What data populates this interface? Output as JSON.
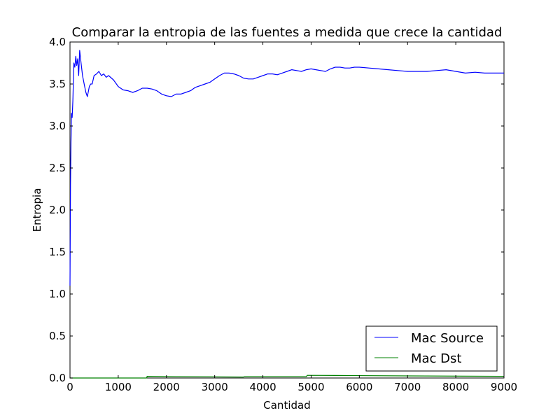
{
  "chart_data": {
    "type": "line",
    "title": "Comparar la entropia de las fuentes a medida que crece la cantidad",
    "xlabel": "Cantidad",
    "ylabel": "Entropia",
    "xlim": [
      0,
      9000
    ],
    "ylim": [
      0.0,
      4.0
    ],
    "xticks": [
      0,
      1000,
      2000,
      3000,
      4000,
      5000,
      6000,
      7000,
      8000,
      9000
    ],
    "xtick_labels": [
      "0",
      "1000",
      "2000",
      "3000",
      "4000",
      "5000",
      "6000",
      "7000",
      "8000",
      "9000"
    ],
    "yticks": [
      0.0,
      0.5,
      1.0,
      1.5,
      2.0,
      2.5,
      3.0,
      3.5,
      4.0
    ],
    "ytick_labels": [
      "0.0",
      "0.5",
      "1.0",
      "1.5",
      "2.0",
      "2.5",
      "3.0",
      "3.5",
      "4.0"
    ],
    "grid": false,
    "legend_position": "bottom-right",
    "series": [
      {
        "name": "Mac Source",
        "color": "#0000ff",
        "x": [
          0,
          10,
          20,
          30,
          45,
          60,
          80,
          100,
          120,
          140,
          160,
          180,
          200,
          230,
          260,
          300,
          330,
          360,
          400,
          430,
          460,
          500,
          550,
          600,
          650,
          700,
          750,
          800,
          900,
          1000,
          1100,
          1200,
          1300,
          1400,
          1500,
          1600,
          1700,
          1800,
          1900,
          2000,
          2100,
          2200,
          2300,
          2400,
          2500,
          2600,
          2700,
          2800,
          2900,
          3000,
          3100,
          3200,
          3300,
          3400,
          3500,
          3600,
          3700,
          3800,
          3900,
          4000,
          4100,
          4200,
          4300,
          4400,
          4500,
          4600,
          4700,
          4800,
          4900,
          5000,
          5100,
          5200,
          5300,
          5400,
          5500,
          5600,
          5700,
          5800,
          5900,
          6000,
          6200,
          6400,
          6600,
          6800,
          7000,
          7200,
          7400,
          7600,
          7800,
          8000,
          8200,
          8400,
          8600,
          8800,
          9000
        ],
        "y": [
          1.1,
          2.3,
          2.8,
          3.15,
          3.1,
          3.3,
          3.75,
          3.7,
          3.83,
          3.72,
          3.8,
          3.6,
          3.9,
          3.75,
          3.6,
          3.48,
          3.4,
          3.35,
          3.47,
          3.5,
          3.5,
          3.6,
          3.62,
          3.65,
          3.6,
          3.62,
          3.58,
          3.6,
          3.55,
          3.47,
          3.43,
          3.42,
          3.4,
          3.42,
          3.45,
          3.45,
          3.44,
          3.42,
          3.38,
          3.36,
          3.35,
          3.38,
          3.38,
          3.4,
          3.42,
          3.46,
          3.48,
          3.5,
          3.52,
          3.56,
          3.6,
          3.63,
          3.63,
          3.62,
          3.6,
          3.57,
          3.56,
          3.56,
          3.58,
          3.6,
          3.62,
          3.62,
          3.61,
          3.63,
          3.65,
          3.67,
          3.66,
          3.65,
          3.67,
          3.68,
          3.67,
          3.66,
          3.65,
          3.68,
          3.7,
          3.7,
          3.69,
          3.69,
          3.7,
          3.7,
          3.69,
          3.68,
          3.67,
          3.66,
          3.65,
          3.65,
          3.65,
          3.66,
          3.67,
          3.65,
          3.63,
          3.64,
          3.63,
          3.63,
          3.63
        ]
      },
      {
        "name": "Mac Dst",
        "color": "#008000",
        "x": [
          0,
          1590,
          1600,
          2200,
          3600,
          3620,
          4900,
          4920,
          5500,
          7000,
          9000
        ],
        "y": [
          0.0,
          0.0,
          0.02,
          0.016,
          0.012,
          0.016,
          0.016,
          0.032,
          0.03,
          0.025,
          0.02
        ]
      }
    ]
  }
}
